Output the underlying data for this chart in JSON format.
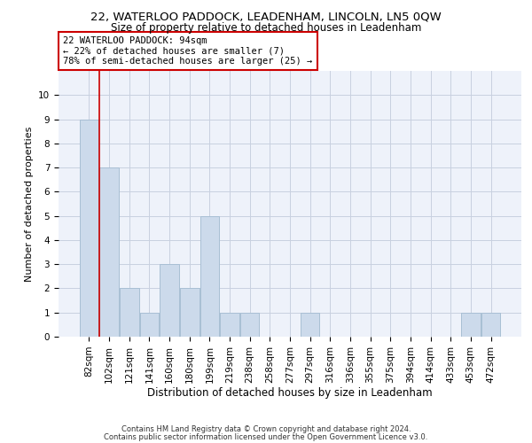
{
  "title": "22, WATERLOO PADDOCK, LEADENHAM, LINCOLN, LN5 0QW",
  "subtitle": "Size of property relative to detached houses in Leadenham",
  "xlabel": "Distribution of detached houses by size in Leadenham",
  "ylabel": "Number of detached properties",
  "categories": [
    "82sqm",
    "102sqm",
    "121sqm",
    "141sqm",
    "160sqm",
    "180sqm",
    "199sqm",
    "219sqm",
    "238sqm",
    "258sqm",
    "277sqm",
    "297sqm",
    "316sqm",
    "336sqm",
    "355sqm",
    "375sqm",
    "394sqm",
    "414sqm",
    "433sqm",
    "453sqm",
    "472sqm"
  ],
  "values": [
    9,
    7,
    2,
    1,
    3,
    2,
    5,
    1,
    1,
    0,
    0,
    1,
    0,
    0,
    0,
    0,
    0,
    0,
    0,
    1,
    1
  ],
  "bar_color": "#ccdaeb",
  "bar_edge_color": "#a8bfd4",
  "annotation_box_text_line1": "22 WATERLOO PADDOCK: 94sqm",
  "annotation_box_text_line2": "← 22% of detached houses are smaller (7)",
  "annotation_box_text_line3": "78% of semi-detached houses are larger (25) →",
  "annotation_box_color": "white",
  "annotation_box_edge_color": "#cc0000",
  "vline_color": "#cc0000",
  "vline_x": 0.5,
  "ylim": [
    0,
    11
  ],
  "yticks": [
    0,
    1,
    2,
    3,
    4,
    5,
    6,
    7,
    8,
    9,
    10
  ],
  "grid_color": "#c8d0e0",
  "background_color": "#eef2fa",
  "footer1": "Contains HM Land Registry data © Crown copyright and database right 2024.",
  "footer2": "Contains public sector information licensed under the Open Government Licence v3.0.",
  "title_fontsize": 9.5,
  "subtitle_fontsize": 8.5,
  "xlabel_fontsize": 8.5,
  "ylabel_fontsize": 8,
  "tick_fontsize": 7.5,
  "annotation_fontsize": 7.5,
  "footer_fontsize": 6
}
